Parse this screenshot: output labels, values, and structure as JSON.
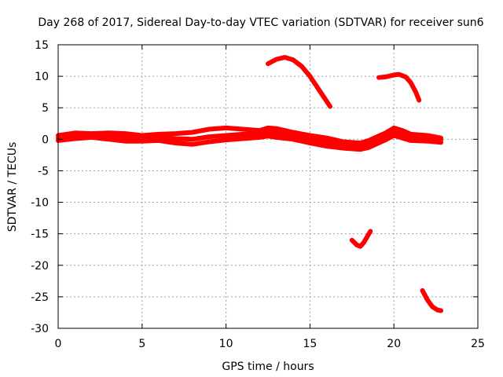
{
  "chart_data": {
    "type": "line",
    "title": "Day 268 of 2017, Sidereal Day-to-day VTEC variation (SDTVAR) for receiver sun6",
    "xlabel": "GPS time / hours",
    "ylabel": "SDTVAR / TECUs",
    "xlim": [
      0,
      25
    ],
    "ylim": [
      -30,
      15
    ],
    "xticks": [
      "0",
      "5",
      "10",
      "15",
      "20",
      "25"
    ],
    "yticks": [
      "15",
      "10",
      "5",
      "0",
      "-5",
      "-10",
      "-15",
      "-20",
      "-25",
      "-30"
    ],
    "grid": true,
    "legend": "none",
    "color": "#ff0000",
    "series": [
      {
        "name": "main-band-upper",
        "x": [
          0,
          1,
          2,
          3,
          4,
          5,
          6,
          7,
          8,
          9,
          10,
          11,
          12,
          12.5,
          13,
          14,
          15,
          16,
          17,
          18,
          18.5,
          19,
          19.5,
          20,
          20.5,
          21,
          22,
          22.8
        ],
        "y": [
          0.6,
          1.0,
          0.9,
          1.0,
          0.9,
          0.6,
          0.8,
          0.9,
          1.1,
          1.6,
          1.8,
          1.6,
          1.4,
          1.8,
          1.7,
          1.1,
          0.6,
          0.2,
          -0.4,
          -0.6,
          -0.2,
          0.4,
          1.0,
          1.8,
          1.4,
          0.8,
          0.6,
          0.2
        ]
      },
      {
        "name": "main-band-mid",
        "x": [
          0,
          1,
          2,
          3,
          4,
          5,
          6,
          7,
          8,
          9,
          10,
          11,
          12,
          12.5,
          13,
          14,
          15,
          16,
          17,
          18,
          18.5,
          19,
          19.5,
          20,
          20.5,
          21,
          22,
          22.8
        ],
        "y": [
          0.2,
          0.5,
          0.6,
          0.6,
          0.4,
          0.2,
          0.3,
          0.1,
          0.0,
          0.4,
          0.6,
          0.8,
          0.9,
          1.2,
          1.0,
          0.6,
          0.1,
          -0.4,
          -0.8,
          -1.1,
          -0.8,
          -0.2,
          0.4,
          1.2,
          0.8,
          0.3,
          0.2,
          -0.1
        ]
      },
      {
        "name": "main-band-lower",
        "x": [
          0,
          1,
          2,
          3,
          4,
          5,
          6,
          7,
          8,
          9,
          10,
          11,
          12,
          12.5,
          13,
          14,
          15,
          16,
          17,
          18,
          18.5,
          19,
          19.5,
          20,
          20.5,
          21,
          22,
          22.8
        ],
        "y": [
          -0.2,
          0.1,
          0.3,
          0.0,
          -0.3,
          -0.3,
          -0.2,
          -0.6,
          -0.8,
          -0.4,
          -0.1,
          0.1,
          0.3,
          0.5,
          0.3,
          0.0,
          -0.6,
          -1.1,
          -1.4,
          -1.6,
          -1.3,
          -0.7,
          -0.1,
          0.6,
          0.2,
          -0.2,
          -0.3,
          -0.5
        ]
      },
      {
        "name": "arc-high-1",
        "x": [
          12.5,
          13,
          13.5,
          14,
          14.5,
          15,
          15.5,
          16,
          16.2
        ],
        "y": [
          12.0,
          12.7,
          13.0,
          12.6,
          11.6,
          10.0,
          8.0,
          6.0,
          5.2
        ]
      },
      {
        "name": "arc-high-2",
        "x": [
          19.1,
          19.5,
          20,
          20.3,
          20.7,
          21,
          21.3,
          21.5
        ],
        "y": [
          9.8,
          9.9,
          10.2,
          10.3,
          9.9,
          9.0,
          7.5,
          6.2
        ]
      },
      {
        "name": "arc-low-1",
        "x": [
          17.5,
          17.8,
          18.0,
          18.2,
          18.4,
          18.6
        ],
        "y": [
          -16.0,
          -16.8,
          -17.0,
          -16.4,
          -15.5,
          -14.6
        ]
      },
      {
        "name": "arc-low-2",
        "x": [
          21.7,
          22.0,
          22.3,
          22.6,
          22.8
        ],
        "y": [
          -24.0,
          -25.5,
          -26.6,
          -27.1,
          -27.2
        ]
      }
    ]
  }
}
